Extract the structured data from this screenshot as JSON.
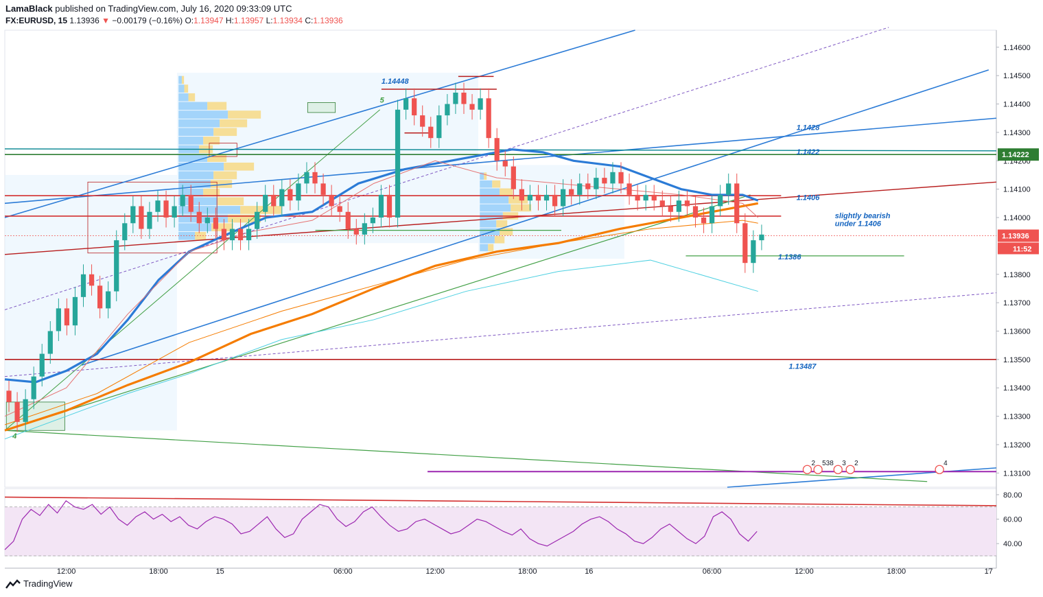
{
  "header": {
    "publisher": "LamaBlack",
    "published_text": "published on TradingView.com, July 16, 2020 09:33:09 UTC",
    "symbol": "FX:EURUSD, 15",
    "last": "1.13936",
    "change_arrow": "▼",
    "change": "−0.00179 (−0.16%)",
    "o_label": "O:",
    "o_value": "1.13947",
    "h_label": "H:",
    "h_value": "1.13957",
    "l_label": "L:",
    "l_value": "1.13934",
    "c_label": "C:",
    "c_value": "1.13936"
  },
  "footer": {
    "brand": "TradingView",
    "logo_icon": "tradingview-logo-icon"
  },
  "colors": {
    "down": "#ef5350",
    "up": "#26a69a",
    "ema_blue": "#2b7bd6",
    "orange": "#f57c00",
    "green": "#43a047",
    "darkred": "#b71c1c",
    "teal": "#4dd0e1",
    "purple": "#9c27b0",
    "rsi_fill": "#f3e5f5",
    "price_tag": "#ef5350",
    "level_tag": "#2e7d32"
  },
  "chart_data": {
    "type": "candlestick",
    "symbol": "FX:EURUSD",
    "interval": "15",
    "price_axis": {
      "range": [
        1.1305,
        1.1466
      ],
      "ticks": [
        "1.14600",
        "1.14500",
        "1.14400",
        "1.14300",
        "1.14200",
        "1.14100",
        "1.14000",
        "1.13800",
        "1.13700",
        "1.13600",
        "1.13500",
        "1.13400",
        "1.13300",
        "1.13200",
        "1.13100"
      ],
      "current_price": "1.13936",
      "countdown": "11:52",
      "level_tag": "1.14222"
    },
    "time_axis": {
      "ticks": [
        "12:00",
        "18:00",
        "15",
        "06:00",
        "12:00",
        "18:00",
        "16",
        "06:00",
        "12:00",
        "18:00",
        "17"
      ],
      "range_hours": [
        0,
        64.5
      ]
    },
    "annotations": [
      {
        "text": "1.14448",
        "t": 24.5,
        "p": 1.14472
      },
      {
        "text": "1.1428",
        "t": 51.5,
        "p": 1.14308
      },
      {
        "text": "1.1422",
        "t": 51.5,
        "p": 1.14222
      },
      {
        "text": "1.1406",
        "t": 51.5,
        "p": 1.14062
      },
      {
        "text": "slightly bearish",
        "t": 54,
        "p": 1.13998
      },
      {
        "text": "under 1.1406",
        "t": 54,
        "p": 1.1397
      },
      {
        "text": "1.1386",
        "t": 50.3,
        "p": 1.13852
      },
      {
        "text": "1.13487",
        "t": 51,
        "p": 1.13467
      },
      {
        "text": "5",
        "t": 24.4,
        "p": 1.14405
      },
      {
        "text": "4",
        "t": 0.5,
        "p": 1.13222
      }
    ],
    "horizontal_levels": [
      {
        "price": 1.14222,
        "color": "#2e7d32",
        "name": "resistance"
      },
      {
        "price": 1.14077,
        "color": "#d32f2f",
        "name": "pivot"
      },
      {
        "price": 1.14005,
        "color": "#d32f2f",
        "name": "level"
      },
      {
        "price": 1.135,
        "color": "#b71c1c",
        "name": "support"
      }
    ],
    "closes": [
      1.1335,
      1.1328,
      1.1336,
      1.1344,
      1.1352,
      1.136,
      1.1368,
      1.1362,
      1.1372,
      1.138,
      1.1376,
      1.1368,
      1.1374,
      1.1392,
      1.1398,
      1.1404,
      1.1396,
      1.1402,
      1.1406,
      1.14,
      1.1404,
      1.1408,
      1.1402,
      1.1398,
      1.14,
      1.1396,
      1.1392,
      1.1396,
      1.1392,
      1.1396,
      1.1402,
      1.1408,
      1.1404,
      1.141,
      1.1406,
      1.1412,
      1.1416,
      1.1412,
      1.1408,
      1.1404,
      1.1402,
      1.1396,
      1.1394,
      1.1398,
      1.14,
      1.1408,
      1.14,
      1.1438,
      1.1442,
      1.1436,
      1.1432,
      1.1428,
      1.1436,
      1.144,
      1.1444,
      1.144,
      1.1438,
      1.1442,
      1.1428,
      1.142,
      1.1418,
      1.141,
      1.1406,
      1.1408,
      1.1406,
      1.1408,
      1.1404,
      1.141,
      1.1408,
      1.1412,
      1.141,
      1.1414,
      1.1412,
      1.1416,
      1.1412,
      1.1408,
      1.1406,
      1.1408,
      1.1406,
      1.1404,
      1.1402,
      1.1406,
      1.1404,
      1.14,
      1.1398,
      1.1404,
      1.1408,
      1.1412,
      1.1398,
      1.1384,
      1.1392,
      1.1394
    ],
    "rsi": {
      "range": [
        30,
        85
      ],
      "ticks": [
        "80.00",
        "60.00",
        "40.00"
      ],
      "band": [
        70,
        30
      ],
      "values": [
        35,
        42,
        60,
        68,
        63,
        72,
        65,
        75,
        70,
        68,
        72,
        64,
        70,
        60,
        55,
        62,
        66,
        60,
        64,
        58,
        62,
        55,
        52,
        58,
        62,
        60,
        56,
        48,
        50,
        56,
        62,
        52,
        45,
        48,
        60,
        66,
        72,
        70,
        60,
        54,
        58,
        66,
        70,
        62,
        55,
        50,
        52,
        58,
        60,
        56,
        52,
        48,
        50,
        55,
        60,
        58,
        54,
        50,
        47,
        52,
        44,
        40,
        38,
        42,
        46,
        50,
        56,
        60,
        62,
        58,
        52,
        48,
        42,
        40,
        45,
        52,
        56,
        50,
        44,
        40,
        46,
        62,
        66,
        60,
        48,
        42,
        50
      ]
    }
  }
}
